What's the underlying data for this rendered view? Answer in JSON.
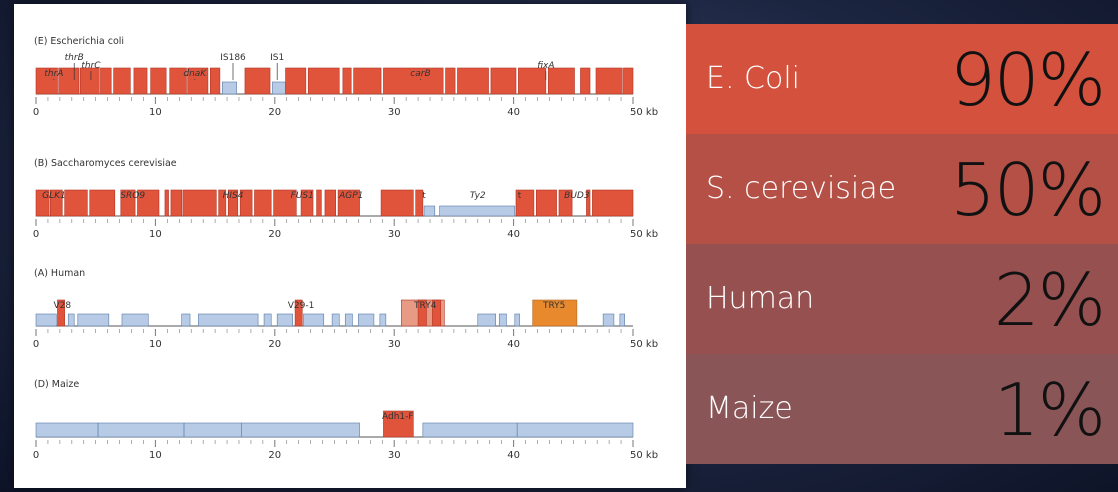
{
  "stats": [
    {
      "organism": "E. Coli",
      "percent": "90%",
      "color": "#d3513d"
    },
    {
      "organism": "S. cerevisiae",
      "percent": "50%",
      "color": "#b45045"
    },
    {
      "organism": "Human",
      "percent": "2%",
      "color": "#975050"
    },
    {
      "organism": "Maize",
      "percent": "1%",
      "color": "#8a5557"
    }
  ],
  "figure": {
    "gene_color": "#e0543c",
    "gene_edge": "#b33524",
    "repeat_color": "#b7cbe6",
    "repeat_edge": "#5a7aa6",
    "pseudo_color": "#e79a84",
    "try5_color": "#e8892e",
    "axis_unit": "kb",
    "axis_ticks": [
      "0",
      "10",
      "20",
      "30",
      "40",
      "50 kb"
    ],
    "panels": [
      {
        "label": "(E) Escherichia coli",
        "genes": [
          [
            0,
            1.8
          ],
          [
            1.9,
            3.6
          ],
          [
            3.7,
            5.3
          ],
          [
            5.4,
            6.3
          ],
          [
            6.5,
            7.9
          ],
          [
            8.2,
            9.3
          ],
          [
            9.6,
            10.9
          ],
          [
            11.2,
            12.6
          ],
          [
            12.7,
            14.4
          ],
          [
            14.6,
            15.4
          ],
          [
            17.5,
            19.6
          ],
          [
            20.9,
            22.6
          ],
          [
            22.8,
            25.4
          ],
          [
            25.7,
            26.4
          ],
          [
            26.6,
            28.9
          ],
          [
            29.1,
            34.1
          ],
          [
            34.3,
            35.1
          ],
          [
            35.3,
            37.9
          ],
          [
            38.1,
            40.2
          ],
          [
            40.4,
            42.7
          ],
          [
            42.9,
            45.1
          ],
          [
            45.6,
            46.4
          ],
          [
            46.9,
            49.1
          ],
          [
            49.2,
            50
          ]
        ],
        "repeats": [
          [
            15.6,
            16.8
          ],
          [
            19.8,
            20.9
          ]
        ],
        "labels": [
          {
            "text": "thrA",
            "pos": 1.5,
            "row": 2,
            "italic": true
          },
          {
            "text": "thrB",
            "pos": 3.2,
            "row": 0,
            "italic": true
          },
          {
            "text": "thrC",
            "pos": 4.6,
            "row": 1,
            "italic": true
          },
          {
            "text": "dnaK",
            "pos": 13.3,
            "row": 2,
            "italic": true
          },
          {
            "text": "IS186",
            "pos": 16.5,
            "row": 0,
            "italic": false
          },
          {
            "text": "IS1",
            "pos": 20.2,
            "row": 0,
            "italic": false
          },
          {
            "text": "carB",
            "pos": 32.2,
            "row": 2,
            "italic": true
          },
          {
            "text": "fixA",
            "pos": 42.7,
            "row": 1,
            "italic": true
          }
        ]
      },
      {
        "label": "(B) Saccharomyces cerevisiae",
        "genes": [
          [
            0,
            1.1
          ],
          [
            1.2,
            2.2
          ],
          [
            2.4,
            4.3
          ],
          [
            4.5,
            6.6
          ],
          [
            7.1,
            8.3
          ],
          [
            8.5,
            10.3
          ],
          [
            10.8,
            11.1
          ],
          [
            11.3,
            12.2
          ],
          [
            12.3,
            15.1
          ],
          [
            15.3,
            15.9
          ],
          [
            16.1,
            16.9
          ],
          [
            17.1,
            18.1
          ],
          [
            18.3,
            19.7
          ],
          [
            19.9,
            21.8
          ],
          [
            22.2,
            23.2
          ],
          [
            23.5,
            23.9
          ],
          [
            24.2,
            25.1
          ],
          [
            25.3,
            27.1
          ],
          [
            28.9,
            31.6
          ],
          [
            31.8,
            32.4
          ],
          [
            40.2,
            41.7
          ],
          [
            41.9,
            43.6
          ],
          [
            43.8,
            44.9
          ],
          [
            46.1,
            46.4
          ],
          [
            46.6,
            50
          ]
        ],
        "repeats": [
          [
            32.5,
            33.4
          ],
          [
            33.8,
            40.1
          ]
        ],
        "labels": [
          {
            "text": "GLK1",
            "pos": 1.5,
            "row": 2,
            "italic": true
          },
          {
            "text": "SRO9",
            "pos": 8.1,
            "row": 2,
            "italic": true
          },
          {
            "text": "HIS4",
            "pos": 16.5,
            "row": 2,
            "italic": true
          },
          {
            "text": "FUS1",
            "pos": 22.3,
            "row": 2,
            "italic": true
          },
          {
            "text": "AGP1",
            "pos": 26.4,
            "row": 2,
            "italic": true
          },
          {
            "text": "t",
            "pos": 32.5,
            "row": 2,
            "italic": false
          },
          {
            "text": "Ty2",
            "pos": 37.0,
            "row": 2,
            "italic": true
          },
          {
            "text": "t",
            "pos": 40.5,
            "row": 2,
            "italic": false
          },
          {
            "text": "BUD3",
            "pos": 45.3,
            "row": 2,
            "italic": true
          }
        ]
      },
      {
        "label": "(A) Human",
        "genes": [
          [
            1.8,
            2.4
          ],
          [
            21.7,
            22.3
          ],
          [
            32.0,
            32.7
          ],
          [
            33.2,
            33.9
          ]
        ],
        "pseudo": [
          [
            30.6,
            34.2
          ]
        ],
        "try5": [
          [
            41.6,
            45.3
          ]
        ],
        "repeats": [
          [
            0,
            1.7
          ],
          [
            2.7,
            3.2
          ],
          [
            3.5,
            6.1
          ],
          [
            7.2,
            9.4
          ],
          [
            12.2,
            12.9
          ],
          [
            13.6,
            18.6
          ],
          [
            19.1,
            19.7
          ],
          [
            20.2,
            21.5
          ],
          [
            22.4,
            24.1
          ],
          [
            24.8,
            25.4
          ],
          [
            25.9,
            26.5
          ],
          [
            27.0,
            28.3
          ],
          [
            28.8,
            29.3
          ],
          [
            37.0,
            38.5
          ],
          [
            38.8,
            39.4
          ],
          [
            40.1,
            40.5
          ],
          [
            47.5,
            48.4
          ],
          [
            48.9,
            49.3
          ]
        ],
        "labels": [
          {
            "text": "V28",
            "pos": 2.2,
            "row": 2,
            "italic": false
          },
          {
            "text": "V29-1",
            "pos": 22.2,
            "row": 2,
            "italic": false
          },
          {
            "text": "TRY4",
            "pos": 32.6,
            "row": 2,
            "italic": false
          },
          {
            "text": "TRY5",
            "pos": 43.4,
            "row": 2,
            "italic": false
          }
        ]
      },
      {
        "label": "(D) Maize",
        "genes": [
          [
            29.1,
            31.6
          ]
        ],
        "repeats": [
          [
            0,
            5.2
          ],
          [
            5.2,
            12.4
          ],
          [
            12.4,
            17.2
          ],
          [
            17.2,
            27.1
          ],
          [
            32.4,
            40.3
          ],
          [
            40.3,
            50
          ]
        ],
        "labels": [
          {
            "text": "Adh1-F",
            "pos": 30.3,
            "row": 2,
            "italic": false
          }
        ]
      }
    ]
  }
}
